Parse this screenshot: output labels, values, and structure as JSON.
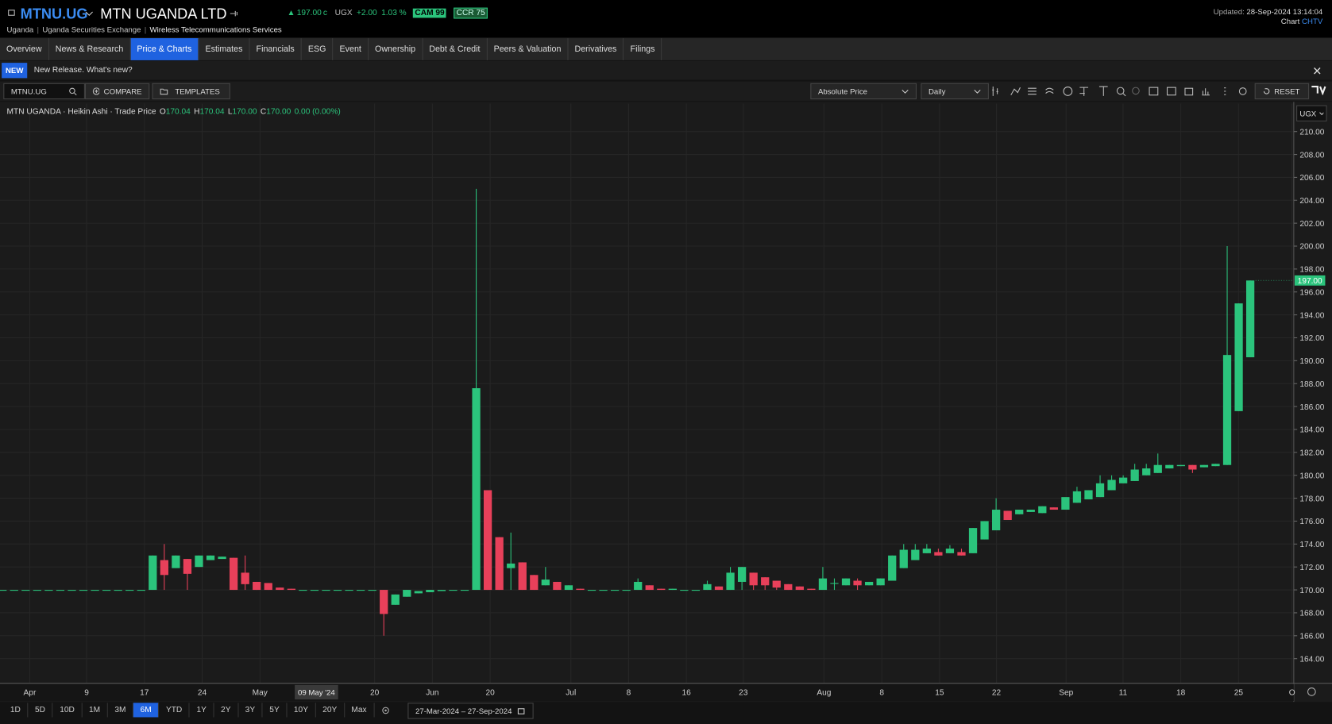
{
  "header": {
    "ticker": "MTNU.UG",
    "name": "MTN UGANDA LTD",
    "price": "197.00",
    "price_unit": "c",
    "currency": "UGX",
    "change": "+2.00",
    "change_pct": "1.03 %",
    "badges": [
      "CAM 99",
      "CCR 75"
    ],
    "updated_label": "Updated:",
    "updated": "28-Sep-2024 13:14:04",
    "source_label": "Chart",
    "source": "CHTV",
    "breadcrumbs": [
      "Uganda",
      "Uganda Securities Exchange",
      "Wireless Telecommunications Services"
    ]
  },
  "tabs": [
    "Overview",
    "News & Research",
    "Price & Charts",
    "Estimates",
    "Financials",
    "ESG",
    "Event",
    "Ownership",
    "Debt & Credit",
    "Peers & Valuation",
    "Derivatives",
    "Filings"
  ],
  "active_tab": 2,
  "notice": {
    "badge": "NEW",
    "text": "New Release. What's new?"
  },
  "toolbar": {
    "symbol": "MTNU.UG",
    "compare": "COMPARE",
    "templates": "TEMPLATES",
    "price_mode": "Absolute Price",
    "interval": "Daily",
    "reset": "RESET"
  },
  "chart": {
    "type": "candlestick",
    "legend_title": "MTN UGANDA · Heikin Ashi · Trade Price",
    "ohlc": [
      {
        "k": "O",
        "v": "170.04"
      },
      {
        "k": "H",
        "v": "170.04"
      },
      {
        "k": "L",
        "v": "170.00"
      },
      {
        "k": "C",
        "v": "170.00"
      }
    ],
    "change": "0.00 (0.00%)",
    "currency": "UGX",
    "up_color": "#2bc47c",
    "down_color": "#e8405a",
    "grid": true,
    "ylim": [
      161.85,
      212.44
    ],
    "yticks": [
      {
        "value": 164,
        "label": "164.00"
      },
      {
        "value": 166,
        "label": "166.00"
      },
      {
        "value": 168,
        "label": "168.00"
      },
      {
        "value": 170,
        "label": "170.00"
      },
      {
        "value": 172,
        "label": "172.00"
      },
      {
        "value": 174,
        "label": "174.00"
      },
      {
        "value": 176,
        "label": "176.00"
      },
      {
        "value": 178,
        "label": "178.00"
      },
      {
        "value": 180,
        "label": "180.00"
      },
      {
        "value": 182,
        "label": "182.00"
      },
      {
        "value": 184,
        "label": "184.00"
      },
      {
        "value": 186,
        "label": "186.00"
      },
      {
        "value": 188,
        "label": "188.00"
      },
      {
        "value": 190,
        "label": "190.00"
      },
      {
        "value": 192,
        "label": "192.00"
      },
      {
        "value": 194,
        "label": "194.00"
      },
      {
        "value": 196,
        "label": "196.00"
      },
      {
        "value": 198,
        "label": "198.00"
      },
      {
        "value": 200,
        "label": "200.00"
      },
      {
        "value": 202,
        "label": "202.00"
      },
      {
        "value": 204,
        "label": "204.00"
      },
      {
        "value": 206,
        "label": "206.00"
      },
      {
        "value": 208,
        "label": "208.00"
      },
      {
        "value": 210,
        "label": "210.00"
      }
    ],
    "last_price": {
      "value": 197,
      "label": "197.00"
    },
    "xlabels": [
      "Apr",
      "9",
      "17",
      "24",
      "May",
      "20",
      "Jun",
      "20",
      "Jul",
      "8",
      "16",
      "23",
      "Aug",
      "8",
      "15",
      "22",
      "Sep",
      "11",
      "18",
      "25",
      "O"
    ],
    "crosshair_label": "09 May '24",
    "candles": [
      [
        170,
        170,
        170,
        170
      ],
      [
        170,
        170,
        170,
        170
      ],
      [
        170,
        170,
        170,
        170
      ],
      [
        170,
        170,
        170,
        170
      ],
      [
        170,
        170,
        170,
        170
      ],
      [
        170,
        170,
        170,
        170
      ],
      [
        170,
        170,
        170,
        170
      ],
      [
        170,
        170,
        170,
        170
      ],
      [
        170,
        170,
        170,
        170
      ],
      [
        170,
        170,
        170,
        170
      ],
      [
        170,
        170,
        170,
        170
      ],
      [
        170,
        170,
        170,
        170
      ],
      [
        170,
        170,
        170,
        170
      ],
      [
        170,
        173,
        170,
        173
      ],
      [
        172.6,
        174,
        170,
        171.3
      ],
      [
        171.9,
        173,
        171.9,
        173
      ],
      [
        172.7,
        172.7,
        170,
        171.4
      ],
      [
        172,
        173,
        172,
        173
      ],
      [
        172.6,
        173,
        172.6,
        173
      ],
      [
        172.7,
        172.9,
        172.7,
        172.9
      ],
      [
        172.8,
        172.8,
        170,
        170
      ],
      [
        171.5,
        173,
        170,
        170.5
      ],
      [
        170.7,
        170.7,
        170,
        170
      ],
      [
        170.6,
        170.6,
        170,
        170
      ],
      [
        170.2,
        170.2,
        170,
        170
      ],
      [
        170.1,
        170.1,
        170,
        170
      ],
      [
        170,
        170,
        170,
        170
      ],
      [
        170,
        170,
        170,
        170
      ],
      [
        170,
        170,
        170,
        170
      ],
      [
        170,
        170,
        170,
        170
      ],
      [
        170,
        170,
        170,
        170
      ],
      [
        170,
        170,
        170,
        170
      ],
      [
        170,
        170,
        170,
        170
      ],
      [
        170,
        170,
        166,
        167.9
      ],
      [
        168.7,
        169.6,
        168.7,
        169.6
      ],
      [
        169.4,
        170,
        169.4,
        170
      ],
      [
        169.7,
        169.9,
        169.7,
        169.9
      ],
      [
        169.8,
        170,
        169.8,
        170
      ],
      [
        169.9,
        170,
        169.9,
        170
      ],
      [
        170,
        170,
        170,
        170
      ],
      [
        170,
        170,
        170,
        170
      ],
      [
        170,
        205,
        170,
        187.6
      ],
      [
        178.7,
        178.7,
        170,
        170
      ],
      [
        174.6,
        174.6,
        170,
        170
      ],
      [
        171.9,
        175,
        170,
        172.3
      ],
      [
        172.4,
        172.4,
        170,
        170
      ],
      [
        171.3,
        171.3,
        170,
        170
      ],
      [
        170.4,
        172,
        170.4,
        170.9
      ],
      [
        170.7,
        170.7,
        170,
        170
      ],
      [
        170,
        170.4,
        170,
        170.4
      ],
      [
        170.1,
        170.1,
        170,
        170
      ],
      [
        170,
        170,
        170,
        170
      ],
      [
        170,
        170,
        170,
        170
      ],
      [
        170,
        170,
        170,
        170
      ],
      [
        170,
        170,
        170,
        170
      ],
      [
        170,
        171,
        170,
        170.7
      ],
      [
        170.4,
        170.4,
        170,
        170
      ],
      [
        170.1,
        170.1,
        170,
        170
      ],
      [
        170,
        170.1,
        170,
        170.1
      ],
      [
        170,
        170,
        170,
        170
      ],
      [
        170,
        170,
        170,
        170
      ],
      [
        170,
        170.8,
        170,
        170.5
      ],
      [
        170.3,
        170.3,
        170,
        170
      ],
      [
        170,
        172,
        170,
        171.5
      ],
      [
        170.7,
        172,
        170,
        172
      ],
      [
        171.5,
        171.5,
        170,
        170.4
      ],
      [
        171.1,
        171.1,
        170,
        170.4
      ],
      [
        170.8,
        170.8,
        170,
        170.2
      ],
      [
        170.5,
        170.5,
        170,
        170
      ],
      [
        170.3,
        170.3,
        170,
        170
      ],
      [
        170.1,
        170.1,
        170,
        170
      ],
      [
        170,
        172,
        170,
        171
      ],
      [
        170.6,
        171,
        170,
        170.6
      ],
      [
        170.4,
        171,
        170.4,
        171
      ],
      [
        170.8,
        171,
        170,
        170.4
      ],
      [
        170.4,
        170.7,
        170.4,
        170.7
      ],
      [
        170.4,
        171,
        170.4,
        171
      ],
      [
        170.8,
        173,
        170.8,
        173
      ],
      [
        171.9,
        174,
        171.9,
        173.5
      ],
      [
        172.6,
        174,
        172.6,
        173.5
      ],
      [
        173.2,
        174,
        173.2,
        173.6
      ],
      [
        173.3,
        173.6,
        173,
        173
      ],
      [
        173.2,
        173.9,
        173.2,
        173.6
      ],
      [
        173.3,
        173.6,
        173,
        173
      ],
      [
        173.2,
        175.4,
        173.2,
        175.4
      ],
      [
        174.4,
        176,
        174.4,
        176
      ],
      [
        175.2,
        178,
        175.2,
        177
      ],
      [
        176.9,
        176.9,
        176.1,
        176.1
      ],
      [
        176.6,
        177,
        176.6,
        177
      ],
      [
        176.8,
        177,
        176.8,
        177
      ],
      [
        176.7,
        177.3,
        176.7,
        177.3
      ],
      [
        177.2,
        177.2,
        177,
        177
      ],
      [
        177,
        178,
        177,
        178.1
      ],
      [
        177.6,
        179,
        177.6,
        178.6
      ],
      [
        177.9,
        178.7,
        177.9,
        178.7
      ],
      [
        178.1,
        180,
        178.1,
        179.3
      ],
      [
        178.7,
        180,
        178.7,
        179.6
      ],
      [
        179.3,
        180,
        179.3,
        179.8
      ],
      [
        179.5,
        181,
        179.5,
        180.5
      ],
      [
        180,
        181,
        180,
        180.6
      ],
      [
        180.2,
        181.9,
        180.2,
        180.9
      ],
      [
        180.6,
        180.9,
        180.6,
        180.9
      ],
      [
        180.8,
        180.9,
        180.8,
        180.9
      ],
      [
        180.9,
        180.9,
        180.2,
        180.5
      ],
      [
        180.7,
        180.9,
        180.7,
        180.9
      ],
      [
        180.8,
        181,
        180.8,
        181
      ],
      [
        180.9,
        200,
        180.9,
        190.5
      ],
      [
        185.6,
        195,
        185.6,
        195
      ],
      [
        190.3,
        197,
        190.3,
        197
      ]
    ]
  },
  "ranges": [
    "1D",
    "5D",
    "10D",
    "1M",
    "3M",
    "6M",
    "YTD",
    "1Y",
    "2Y",
    "3Y",
    "5Y",
    "10Y",
    "20Y",
    "Max"
  ],
  "active_range": 5,
  "date_range": "27-Mar-2024 – 27-Sep-2024"
}
